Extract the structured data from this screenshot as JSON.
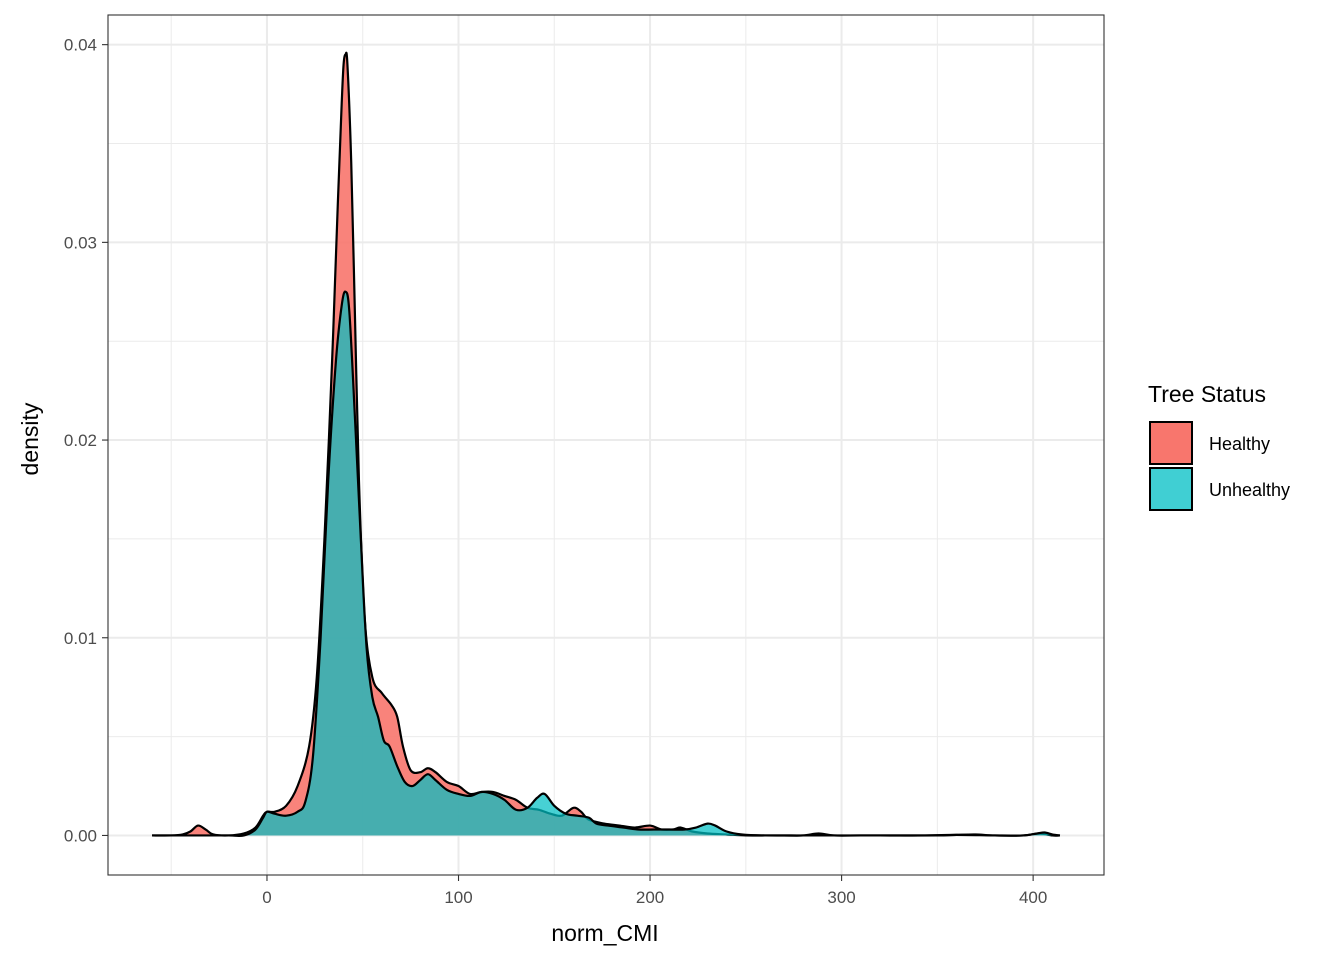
{
  "chart_data": {
    "type": "area",
    "xlabel": "norm_CMI",
    "ylabel": "density",
    "xlim": [
      -83,
      437
    ],
    "ylim": [
      -0.002,
      0.0415
    ],
    "x_major_ticks": [
      0,
      100,
      200,
      300,
      400
    ],
    "x_tick_labels": [
      "0",
      "100",
      "200",
      "300",
      "400"
    ],
    "y_major_ticks": [
      0.0,
      0.01,
      0.02,
      0.03,
      0.04
    ],
    "y_tick_labels": [
      "0.00",
      "0.01",
      "0.02",
      "0.03",
      "0.04"
    ],
    "grid": true,
    "legend": {
      "title": "Tree Status",
      "placement": "right",
      "entries": [
        "Healthy",
        "Unhealthy"
      ]
    },
    "series": [
      {
        "name": "Healthy",
        "color": "#F8766D",
        "points": [
          [
            -60,
            0.0
          ],
          [
            -50,
            0.0
          ],
          [
            -44,
            5e-05
          ],
          [
            -40,
            0.0002
          ],
          [
            -36,
            0.0005
          ],
          [
            -32,
            0.0003
          ],
          [
            -28,
            5e-05
          ],
          [
            -20,
            0.0
          ],
          [
            -12,
            0.0001
          ],
          [
            -6,
            0.0004
          ],
          [
            -2,
            0.001
          ],
          [
            0,
            0.0012
          ],
          [
            4,
            0.0012
          ],
          [
            10,
            0.0015
          ],
          [
            16,
            0.0025
          ],
          [
            22,
            0.0045
          ],
          [
            26,
            0.008
          ],
          [
            30,
            0.015
          ],
          [
            34,
            0.024
          ],
          [
            37,
            0.032
          ],
          [
            39,
            0.037
          ],
          [
            40,
            0.039
          ],
          [
            41,
            0.0395
          ],
          [
            42,
            0.039
          ],
          [
            44,
            0.034
          ],
          [
            46,
            0.026
          ],
          [
            48,
            0.018
          ],
          [
            51,
            0.011
          ],
          [
            55,
            0.008
          ],
          [
            60,
            0.0072
          ],
          [
            65,
            0.0066
          ],
          [
            68,
            0.006
          ],
          [
            71,
            0.0045
          ],
          [
            75,
            0.0033
          ],
          [
            80,
            0.0032
          ],
          [
            84,
            0.0034
          ],
          [
            88,
            0.0032
          ],
          [
            94,
            0.0027
          ],
          [
            100,
            0.0025
          ],
          [
            106,
            0.0021
          ],
          [
            112,
            0.0022
          ],
          [
            118,
            0.0022
          ],
          [
            124,
            0.002
          ],
          [
            130,
            0.0018
          ],
          [
            136,
            0.0014
          ],
          [
            142,
            0.0013
          ],
          [
            148,
            0.0011
          ],
          [
            154,
            0.001
          ],
          [
            160,
            0.0014
          ],
          [
            164,
            0.0012
          ],
          [
            168,
            0.0008
          ],
          [
            176,
            0.0006
          ],
          [
            184,
            0.0005
          ],
          [
            192,
            0.0004
          ],
          [
            200,
            0.0005
          ],
          [
            206,
            0.0003
          ],
          [
            212,
            0.0003
          ],
          [
            216,
            0.0004
          ],
          [
            222,
            0.0002
          ],
          [
            230,
            0.0001
          ],
          [
            240,
            5e-05
          ],
          [
            250,
            0.0
          ],
          [
            260,
            0.0
          ],
          [
            270,
            0.0
          ],
          [
            280,
            0.0
          ],
          [
            288,
            0.0001
          ],
          [
            296,
            0.0
          ],
          [
            310,
            0.0
          ],
          [
            330,
            0.0
          ],
          [
            350,
            0.0
          ],
          [
            360,
            3e-05
          ],
          [
            370,
            5e-05
          ],
          [
            380,
            0.0
          ],
          [
            395,
            0.0
          ],
          [
            403,
            0.0001
          ],
          [
            410,
            0.0
          ],
          [
            414,
            0.0
          ]
        ]
      },
      {
        "name": "Unhealthy",
        "color": "#00BFC4",
        "points": [
          [
            -60,
            0.0
          ],
          [
            -50,
            0.0
          ],
          [
            -44,
            0.0
          ],
          [
            -40,
            0.0
          ],
          [
            -35,
            0.0
          ],
          [
            -30,
            0.0
          ],
          [
            -20,
            0.0
          ],
          [
            -12,
            0.0
          ],
          [
            -6,
            0.0003
          ],
          [
            -2,
            0.0009
          ],
          [
            0,
            0.0012
          ],
          [
            4,
            0.0011
          ],
          [
            10,
            0.001
          ],
          [
            16,
            0.0012
          ],
          [
            20,
            0.0017
          ],
          [
            24,
            0.004
          ],
          [
            28,
            0.01
          ],
          [
            32,
            0.018
          ],
          [
            36,
            0.024
          ],
          [
            39,
            0.0268
          ],
          [
            41,
            0.0275
          ],
          [
            43,
            0.0265
          ],
          [
            46,
            0.021
          ],
          [
            49,
            0.015
          ],
          [
            52,
            0.0095
          ],
          [
            55,
            0.007
          ],
          [
            58,
            0.006
          ],
          [
            61,
            0.0048
          ],
          [
            64,
            0.0045
          ],
          [
            68,
            0.0035
          ],
          [
            72,
            0.0027
          ],
          [
            76,
            0.0025
          ],
          [
            80,
            0.0028
          ],
          [
            84,
            0.0031
          ],
          [
            88,
            0.0028
          ],
          [
            94,
            0.0023
          ],
          [
            100,
            0.0021
          ],
          [
            106,
            0.002
          ],
          [
            112,
            0.0022
          ],
          [
            118,
            0.0021
          ],
          [
            124,
            0.0018
          ],
          [
            130,
            0.0013
          ],
          [
            136,
            0.0014
          ],
          [
            141,
            0.0019
          ],
          [
            145,
            0.0021
          ],
          [
            150,
            0.0015
          ],
          [
            156,
            0.0011
          ],
          [
            162,
            0.001
          ],
          [
            168,
            0.0009
          ],
          [
            172,
            0.0006
          ],
          [
            178,
            0.0005
          ],
          [
            186,
            0.0004
          ],
          [
            194,
            0.0003
          ],
          [
            202,
            0.0003
          ],
          [
            210,
            0.0003
          ],
          [
            218,
            0.0003
          ],
          [
            224,
            0.0004
          ],
          [
            230,
            0.0006
          ],
          [
            234,
            0.0005
          ],
          [
            240,
            0.0002
          ],
          [
            248,
            5e-05
          ],
          [
            260,
            0.0
          ],
          [
            280,
            0.0
          ],
          [
            300,
            0.0
          ],
          [
            320,
            0.0
          ],
          [
            340,
            0.0
          ],
          [
            360,
            3e-05
          ],
          [
            380,
            0.0
          ],
          [
            395,
            0.0
          ],
          [
            402,
            0.0001
          ],
          [
            406,
            0.00015
          ],
          [
            410,
            5e-05
          ],
          [
            414,
            0.0
          ]
        ]
      }
    ]
  }
}
